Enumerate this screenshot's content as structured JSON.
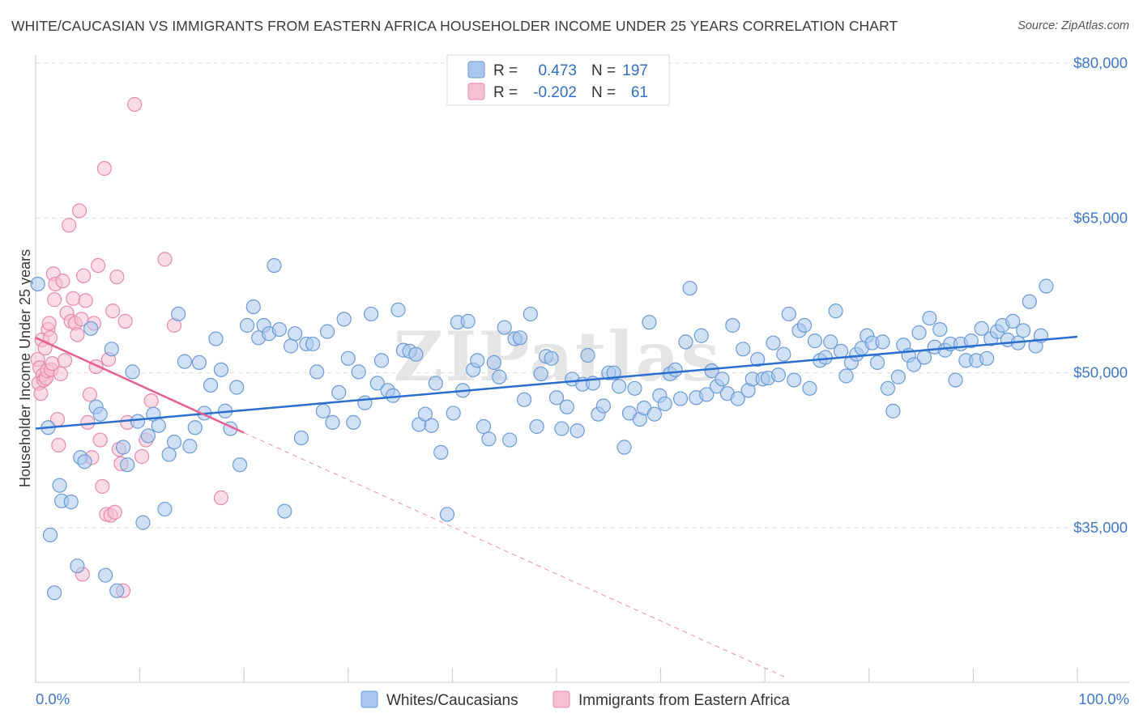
{
  "title": "WHITE/CAUCASIAN VS IMMIGRANTS FROM EASTERN AFRICA HOUSEHOLDER INCOME UNDER 25 YEARS CORRELATION CHART",
  "source": "Source: ZipAtlas.com",
  "watermark": "ZIPatlas",
  "colors": {
    "blue_fill": "#aac8ee",
    "blue_stroke": "#6b9ad6",
    "blue_line": "#2a6fcf",
    "pink_fill": "#f6bfd2",
    "pink_stroke": "#e88aac",
    "pink_line": "#e5608f",
    "tick_text": "#3f78c8",
    "grid": "#dcdcdc"
  },
  "legend": {
    "rows": [
      {
        "r_label": "R =",
        "r_value": "0.473",
        "n_label": "N =",
        "n_value": "197"
      },
      {
        "r_label": "R =",
        "r_value": "-0.202",
        "n_label": "N =",
        "n_value": "61"
      }
    ]
  },
  "chart_data": {
    "type": "scatter",
    "xlabel": "",
    "ylabel": "Householder Income Under 25 years",
    "xlim": [
      0,
      100
    ],
    "ylim": [
      20000,
      83500
    ],
    "x_tick_labels": [
      "0.0%",
      "100.0%"
    ],
    "y_ticks": [
      35000,
      50000,
      65000,
      80000
    ],
    "y_tick_labels": [
      "$35,000",
      "$50,000",
      "$65,000",
      "$80,000"
    ],
    "grid": true,
    "legend_position": "top-center",
    "series": [
      {
        "name": "Whites/Caucasians",
        "color": "#aac8ee",
        "trend": {
          "x": [
            0,
            100
          ],
          "y": [
            44600,
            53500
          ],
          "dashed_extension": false
        },
        "points": [
          [
            0.2,
            58600
          ],
          [
            1.2,
            44700
          ],
          [
            1.4,
            34300
          ],
          [
            1.8,
            28700
          ],
          [
            2.3,
            39100
          ],
          [
            2.5,
            37600
          ],
          [
            3.4,
            37500
          ],
          [
            4.0,
            31300
          ],
          [
            4.3,
            41800
          ],
          [
            4.7,
            41400
          ],
          [
            5.3,
            54300
          ],
          [
            5.8,
            46700
          ],
          [
            6.2,
            46000
          ],
          [
            6.7,
            30400
          ],
          [
            7.3,
            52300
          ],
          [
            7.8,
            28900
          ],
          [
            8.4,
            42800
          ],
          [
            8.8,
            41100
          ],
          [
            9.3,
            50100
          ],
          [
            9.8,
            45300
          ],
          [
            10.3,
            35500
          ],
          [
            10.8,
            43900
          ],
          [
            11.3,
            46000
          ],
          [
            11.8,
            44900
          ],
          [
            12.4,
            36800
          ],
          [
            12.8,
            42100
          ],
          [
            13.3,
            43300
          ],
          [
            13.7,
            55700
          ],
          [
            14.3,
            51100
          ],
          [
            14.8,
            42900
          ],
          [
            15.3,
            44700
          ],
          [
            15.7,
            51000
          ],
          [
            16.2,
            46100
          ],
          [
            16.8,
            48800
          ],
          [
            17.3,
            53300
          ],
          [
            17.8,
            50300
          ],
          [
            18.2,
            46300
          ],
          [
            18.7,
            44600
          ],
          [
            19.3,
            48600
          ],
          [
            19.6,
            41100
          ],
          [
            20.3,
            54600
          ],
          [
            20.9,
            56400
          ],
          [
            21.4,
            53400
          ],
          [
            21.9,
            54600
          ],
          [
            22.4,
            53800
          ],
          [
            22.9,
            60400
          ],
          [
            23.4,
            54200
          ],
          [
            23.9,
            36600
          ],
          [
            24.5,
            52600
          ],
          [
            24.9,
            53800
          ],
          [
            25.5,
            43700
          ],
          [
            26.0,
            52800
          ],
          [
            26.6,
            52800
          ],
          [
            27.0,
            50100
          ],
          [
            27.6,
            46300
          ],
          [
            28.0,
            54000
          ],
          [
            28.5,
            45200
          ],
          [
            29.1,
            48100
          ],
          [
            29.6,
            55200
          ],
          [
            30.0,
            51400
          ],
          [
            30.5,
            45200
          ],
          [
            31.0,
            50100
          ],
          [
            31.6,
            47100
          ],
          [
            32.2,
            55700
          ],
          [
            32.8,
            49000
          ],
          [
            33.2,
            51200
          ],
          [
            33.8,
            48300
          ],
          [
            34.3,
            47800
          ],
          [
            34.8,
            56100
          ],
          [
            35.3,
            52200
          ],
          [
            35.9,
            52100
          ],
          [
            36.5,
            51800
          ],
          [
            36.8,
            45000
          ],
          [
            37.4,
            46000
          ],
          [
            38.0,
            44900
          ],
          [
            38.4,
            49000
          ],
          [
            38.9,
            42300
          ],
          [
            39.5,
            36300
          ],
          [
            40.1,
            46100
          ],
          [
            40.5,
            54900
          ],
          [
            41.0,
            48300
          ],
          [
            41.5,
            55000
          ],
          [
            42.0,
            50300
          ],
          [
            42.4,
            51200
          ],
          [
            43.0,
            44800
          ],
          [
            43.5,
            43600
          ],
          [
            44.0,
            51000
          ],
          [
            44.5,
            49600
          ],
          [
            45.0,
            54400
          ],
          [
            45.5,
            43500
          ],
          [
            46.0,
            53300
          ],
          [
            46.5,
            53400
          ],
          [
            46.9,
            47400
          ],
          [
            47.5,
            55700
          ],
          [
            48.1,
            44800
          ],
          [
            48.5,
            49900
          ],
          [
            49.0,
            51600
          ],
          [
            49.5,
            51400
          ],
          [
            50.0,
            47600
          ],
          [
            50.5,
            44600
          ],
          [
            51.0,
            46700
          ],
          [
            51.5,
            49400
          ],
          [
            52.0,
            44400
          ],
          [
            52.5,
            48900
          ],
          [
            53.0,
            51700
          ],
          [
            53.5,
            49000
          ],
          [
            54.0,
            46000
          ],
          [
            54.5,
            46800
          ],
          [
            55.0,
            50000
          ],
          [
            55.5,
            50000
          ],
          [
            56.0,
            48700
          ],
          [
            56.5,
            42800
          ],
          [
            57.0,
            46100
          ],
          [
            57.5,
            48500
          ],
          [
            58.0,
            45500
          ],
          [
            58.4,
            46600
          ],
          [
            58.9,
            54900
          ],
          [
            59.4,
            46000
          ],
          [
            59.9,
            47800
          ],
          [
            60.4,
            47000
          ],
          [
            60.9,
            49900
          ],
          [
            61.4,
            50300
          ],
          [
            61.9,
            47500
          ],
          [
            62.4,
            53000
          ],
          [
            62.8,
            58200
          ],
          [
            63.4,
            47600
          ],
          [
            63.9,
            53600
          ],
          [
            64.4,
            47900
          ],
          [
            64.9,
            50200
          ],
          [
            65.4,
            48700
          ],
          [
            65.9,
            49400
          ],
          [
            66.4,
            48000
          ],
          [
            66.9,
            54600
          ],
          [
            67.4,
            47500
          ],
          [
            67.9,
            52300
          ],
          [
            68.4,
            48300
          ],
          [
            68.8,
            49400
          ],
          [
            69.3,
            51300
          ],
          [
            69.8,
            49400
          ],
          [
            70.3,
            49500
          ],
          [
            70.8,
            52900
          ],
          [
            71.3,
            49800
          ],
          [
            71.8,
            51800
          ],
          [
            72.3,
            55700
          ],
          [
            72.8,
            49300
          ],
          [
            73.3,
            54100
          ],
          [
            73.8,
            54600
          ],
          [
            74.3,
            48500
          ],
          [
            74.8,
            53100
          ],
          [
            75.3,
            51200
          ],
          [
            75.8,
            51500
          ],
          [
            76.3,
            53000
          ],
          [
            76.8,
            56000
          ],
          [
            77.3,
            52100
          ],
          [
            77.8,
            49700
          ],
          [
            78.3,
            51000
          ],
          [
            78.8,
            51800
          ],
          [
            79.3,
            52400
          ],
          [
            79.8,
            53600
          ],
          [
            80.3,
            52900
          ],
          [
            80.8,
            51000
          ],
          [
            81.3,
            53000
          ],
          [
            81.8,
            48500
          ],
          [
            82.3,
            46300
          ],
          [
            82.8,
            49600
          ],
          [
            83.3,
            52700
          ],
          [
            83.8,
            51700
          ],
          [
            84.3,
            50800
          ],
          [
            84.8,
            53900
          ],
          [
            85.3,
            51500
          ],
          [
            85.8,
            55300
          ],
          [
            86.3,
            52500
          ],
          [
            86.8,
            54200
          ],
          [
            87.3,
            52200
          ],
          [
            87.8,
            52800
          ],
          [
            88.3,
            49300
          ],
          [
            88.8,
            52800
          ],
          [
            89.3,
            51200
          ],
          [
            89.8,
            53100
          ],
          [
            90.3,
            51200
          ],
          [
            90.8,
            54300
          ],
          [
            91.3,
            51400
          ],
          [
            91.7,
            53300
          ],
          [
            92.3,
            54000
          ],
          [
            92.8,
            54600
          ],
          [
            93.3,
            53200
          ],
          [
            93.8,
            55000
          ],
          [
            94.3,
            52900
          ],
          [
            94.8,
            54100
          ],
          [
            95.4,
            56900
          ],
          [
            96.0,
            52600
          ],
          [
            96.5,
            53600
          ],
          [
            97.0,
            58400
          ]
        ]
      },
      {
        "name": "Immigrants from Eastern Africa",
        "color": "#f6bfd2",
        "trend": {
          "x": [
            0,
            20
          ],
          "y": [
            53400,
            44200
          ],
          "dashed_extension": true,
          "extension_end": [
            72,
            20500
          ]
        },
        "points": [
          [
            0.2,
            51300
          ],
          [
            0.3,
            49000
          ],
          [
            0.4,
            50500
          ],
          [
            0.5,
            48000
          ],
          [
            0.6,
            53200
          ],
          [
            0.7,
            49800
          ],
          [
            0.8,
            49300
          ],
          [
            0.9,
            52400
          ],
          [
            1.0,
            49500
          ],
          [
            1.1,
            50200
          ],
          [
            1.2,
            54200
          ],
          [
            1.3,
            54800
          ],
          [
            1.4,
            53400
          ],
          [
            1.5,
            50300
          ],
          [
            1.6,
            50900
          ],
          [
            1.7,
            59600
          ],
          [
            1.8,
            57100
          ],
          [
            1.9,
            58600
          ],
          [
            2.1,
            45500
          ],
          [
            2.2,
            43000
          ],
          [
            2.4,
            49900
          ],
          [
            2.6,
            58900
          ],
          [
            2.8,
            51200
          ],
          [
            3.0,
            55800
          ],
          [
            3.2,
            64300
          ],
          [
            3.4,
            55000
          ],
          [
            3.6,
            57200
          ],
          [
            3.8,
            54800
          ],
          [
            4.0,
            53700
          ],
          [
            4.2,
            65700
          ],
          [
            4.4,
            55200
          ],
          [
            4.5,
            30500
          ],
          [
            4.6,
            59400
          ],
          [
            4.8,
            57000
          ],
          [
            5.0,
            45200
          ],
          [
            5.2,
            47900
          ],
          [
            5.4,
            41800
          ],
          [
            5.6,
            54800
          ],
          [
            5.8,
            50600
          ],
          [
            6.0,
            60400
          ],
          [
            6.2,
            43500
          ],
          [
            6.4,
            39000
          ],
          [
            6.6,
            69800
          ],
          [
            6.8,
            36300
          ],
          [
            7.0,
            51300
          ],
          [
            7.2,
            36200
          ],
          [
            7.4,
            56000
          ],
          [
            7.6,
            36500
          ],
          [
            7.8,
            59300
          ],
          [
            8.0,
            42600
          ],
          [
            8.2,
            41200
          ],
          [
            8.4,
            28900
          ],
          [
            8.6,
            55000
          ],
          [
            8.8,
            45200
          ],
          [
            9.5,
            76000
          ],
          [
            10.2,
            41900
          ],
          [
            10.6,
            43500
          ],
          [
            11.1,
            47300
          ],
          [
            12.4,
            61000
          ],
          [
            13.3,
            54600
          ],
          [
            17.8,
            37900
          ]
        ]
      }
    ]
  },
  "bottom_legend": [
    {
      "label": "Whites/Caucasians"
    },
    {
      "label": "Immigrants from Eastern Africa"
    }
  ]
}
